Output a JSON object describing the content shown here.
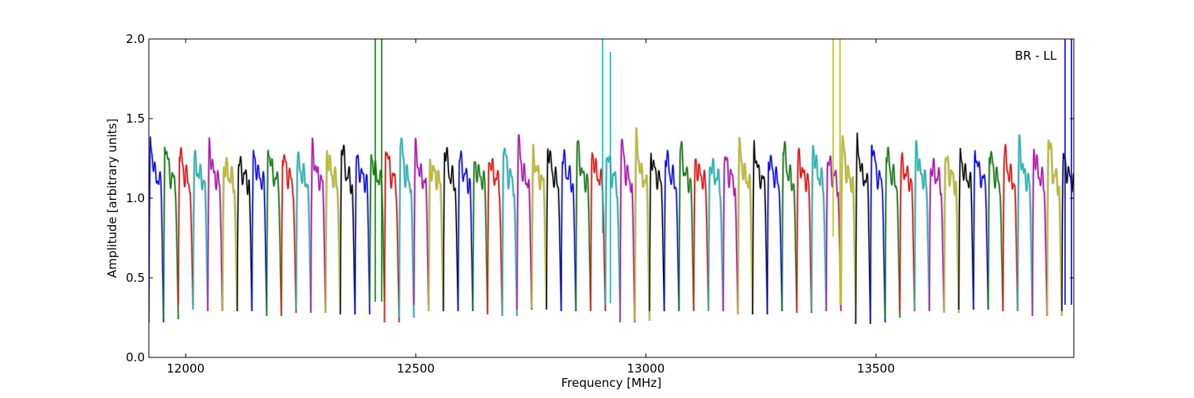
{
  "chart_data": {
    "type": "line",
    "title": "",
    "annotation": "BR - LL",
    "xlabel": "Frequency [MHz]",
    "ylabel": "Amplitude [arbitrary units]",
    "xlim": [
      11920,
      13930
    ],
    "ylim": [
      0.0,
      2.0
    ],
    "x_ticks": [
      12000,
      12500,
      13000,
      13500
    ],
    "x_tick_labels": [
      "12000",
      "12500",
      "13000",
      "13500"
    ],
    "y_ticks": [
      0.0,
      0.5,
      1.0,
      1.5,
      2.0
    ],
    "y_tick_labels": [
      "0.0",
      "0.5",
      "1.0",
      "1.5",
      "2.0"
    ],
    "grid": false,
    "legend": "none",
    "channel_width_mhz": 32,
    "background_color": "#c0c0c0",
    "color_cycle": [
      "#0000ff",
      "#008000",
      "#ff0000",
      "#00bfbf",
      "#bf00bf",
      "#bfbf00",
      "#000000"
    ],
    "channels": [
      {
        "start": 11920,
        "peak": 1.36,
        "min": 0.22,
        "color": "#0000ff"
      },
      {
        "start": 11952,
        "peak": 1.37,
        "min": 0.24,
        "color": "#008000"
      },
      {
        "start": 11984,
        "peak": 1.3,
        "min": 0.33,
        "color": "#ff0000"
      },
      {
        "start": 12016,
        "peak": 1.23,
        "min": 0.3,
        "color": "#00bfbf"
      },
      {
        "start": 12048,
        "peak": 1.33,
        "min": 0.29,
        "color": "#bf00bf"
      },
      {
        "start": 12080,
        "peak": 1.21,
        "min": 0.29,
        "color": "#bfbf00"
      },
      {
        "start": 12112,
        "peak": 1.22,
        "min": 0.29,
        "color": "#000000"
      },
      {
        "start": 12144,
        "peak": 1.27,
        "min": 0.29,
        "color": "#0000ff"
      },
      {
        "start": 12176,
        "peak": 1.33,
        "min": 0.26,
        "color": "#008000"
      },
      {
        "start": 12208,
        "peak": 1.28,
        "min": 0.28,
        "color": "#ff0000"
      },
      {
        "start": 12240,
        "peak": 1.23,
        "min": 0.3,
        "color": "#00bfbf"
      },
      {
        "start": 12272,
        "peak": 1.31,
        "min": 0.28,
        "color": "#bf00bf"
      },
      {
        "start": 12304,
        "peak": 1.29,
        "min": 0.28,
        "color": "#bfbf00"
      },
      {
        "start": 12336,
        "peak": 1.34,
        "min": 0.27,
        "color": "#000000"
      },
      {
        "start": 12368,
        "peak": 1.25,
        "min": 0.27,
        "color": "#0000ff"
      },
      {
        "start": 12400,
        "peak": 1.27,
        "min": 0.35,
        "color": "#008000"
      },
      {
        "start": 12432,
        "peak": 1.34,
        "min": 0.22,
        "color": "#ff0000"
      },
      {
        "start": 12464,
        "peak": 1.37,
        "min": 0.25,
        "color": "#00bfbf"
      },
      {
        "start": 12496,
        "peak": 1.31,
        "min": 0.33,
        "color": "#bf00bf"
      },
      {
        "start": 12528,
        "peak": 1.2,
        "min": 0.29,
        "color": "#bfbf00"
      },
      {
        "start": 12560,
        "peak": 1.33,
        "min": 0.29,
        "color": "#000000"
      },
      {
        "start": 12592,
        "peak": 1.26,
        "min": 0.29,
        "color": "#0000ff"
      },
      {
        "start": 12624,
        "peak": 1.21,
        "min": 0.29,
        "color": "#008000"
      },
      {
        "start": 12656,
        "peak": 1.26,
        "min": 0.27,
        "color": "#ff0000"
      },
      {
        "start": 12688,
        "peak": 1.33,
        "min": 0.26,
        "color": "#00bfbf"
      },
      {
        "start": 12720,
        "peak": 1.35,
        "min": 0.3,
        "color": "#bf00bf"
      },
      {
        "start": 12752,
        "peak": 1.27,
        "min": 0.31,
        "color": "#bfbf00"
      },
      {
        "start": 12784,
        "peak": 1.34,
        "min": 0.3,
        "color": "#000000"
      },
      {
        "start": 12816,
        "peak": 1.27,
        "min": 0.29,
        "color": "#0000ff"
      },
      {
        "start": 12848,
        "peak": 1.35,
        "min": 0.3,
        "color": "#008000"
      },
      {
        "start": 12880,
        "peak": 1.29,
        "min": 0.29,
        "color": "#ff0000"
      },
      {
        "start": 12912,
        "peak": 1.29,
        "min": 0.33,
        "color": "#00bfbf"
      },
      {
        "start": 12944,
        "peak": 1.35,
        "min": 0.22,
        "color": "#bf00bf"
      },
      {
        "start": 12976,
        "peak": 1.37,
        "min": 0.23,
        "color": "#bfbf00"
      },
      {
        "start": 13008,
        "peak": 1.28,
        "min": 0.29,
        "color": "#000000"
      },
      {
        "start": 13040,
        "peak": 1.28,
        "min": 0.3,
        "color": "#0000ff"
      },
      {
        "start": 13072,
        "peak": 1.33,
        "min": 0.29,
        "color": "#008000"
      },
      {
        "start": 13104,
        "peak": 1.22,
        "min": 0.3,
        "color": "#ff0000"
      },
      {
        "start": 13136,
        "peak": 1.22,
        "min": 0.29,
        "color": "#00bfbf"
      },
      {
        "start": 13168,
        "peak": 1.26,
        "min": 0.29,
        "color": "#bf00bf"
      },
      {
        "start": 13200,
        "peak": 1.32,
        "min": 0.27,
        "color": "#bfbf00"
      },
      {
        "start": 13232,
        "peak": 1.33,
        "min": 0.27,
        "color": "#000000"
      },
      {
        "start": 13264,
        "peak": 1.27,
        "min": 0.29,
        "color": "#0000ff"
      },
      {
        "start": 13296,
        "peak": 1.33,
        "min": 0.3,
        "color": "#008000"
      },
      {
        "start": 13328,
        "peak": 1.27,
        "min": 0.28,
        "color": "#ff0000"
      },
      {
        "start": 13360,
        "peak": 1.33,
        "min": 0.29,
        "color": "#00bfbf"
      },
      {
        "start": 13392,
        "peak": 1.25,
        "min": 0.29,
        "color": "#bf00bf"
      },
      {
        "start": 13424,
        "peak": 1.36,
        "min": 0.33,
        "color": "#bfbf00"
      },
      {
        "start": 13456,
        "peak": 1.36,
        "min": 0.21,
        "color": "#000000"
      },
      {
        "start": 13488,
        "peak": 1.38,
        "min": 0.22,
        "color": "#0000ff"
      },
      {
        "start": 13520,
        "peak": 1.3,
        "min": 0.25,
        "color": "#008000"
      },
      {
        "start": 13552,
        "peak": 1.22,
        "min": 0.29,
        "color": "#ff0000"
      },
      {
        "start": 13584,
        "peak": 1.33,
        "min": 0.3,
        "color": "#00bfbf"
      },
      {
        "start": 13616,
        "peak": 1.2,
        "min": 0.29,
        "color": "#bf00bf"
      },
      {
        "start": 13648,
        "peak": 1.25,
        "min": 0.28,
        "color": "#bfbf00"
      },
      {
        "start": 13680,
        "peak": 1.26,
        "min": 0.3,
        "color": "#000000"
      },
      {
        "start": 13712,
        "peak": 1.31,
        "min": 0.3,
        "color": "#0000ff"
      },
      {
        "start": 13744,
        "peak": 1.3,
        "min": 0.3,
        "color": "#008000"
      },
      {
        "start": 13776,
        "peak": 1.29,
        "min": 0.29,
        "color": "#ff0000"
      },
      {
        "start": 13808,
        "peak": 1.35,
        "min": 0.29,
        "color": "#00bfbf"
      },
      {
        "start": 13840,
        "peak": 1.3,
        "min": 0.26,
        "color": "#bf00bf"
      },
      {
        "start": 13872,
        "peak": 1.39,
        "min": 0.26,
        "color": "#bfbf00"
      },
      {
        "start": 13904,
        "peak": 1.25,
        "min": 0.29,
        "color": "#000000"
      }
    ],
    "spikes": [
      {
        "x": 12412,
        "low": 0.35,
        "high": 2.0,
        "color": "#008000"
      },
      {
        "x": 12426,
        "low": 0.35,
        "high": 2.0,
        "color": "#008000"
      },
      {
        "x": 12906,
        "low": 0.78,
        "high": 2.0,
        "color": "#00bfbf"
      },
      {
        "x": 12923,
        "low": 0.34,
        "high": 1.92,
        "color": "#00bfbf"
      },
      {
        "x": 13407,
        "low": 0.76,
        "high": 2.0,
        "color": "#bfbf00"
      },
      {
        "x": 13422,
        "low": 0.33,
        "high": 2.0,
        "color": "#bfbf00"
      },
      {
        "x": 13911,
        "low": 0.33,
        "high": 2.0,
        "color": "#0000ff"
      },
      {
        "x": 13925,
        "low": 0.33,
        "high": 2.0,
        "color": "#0000ff"
      }
    ]
  }
}
